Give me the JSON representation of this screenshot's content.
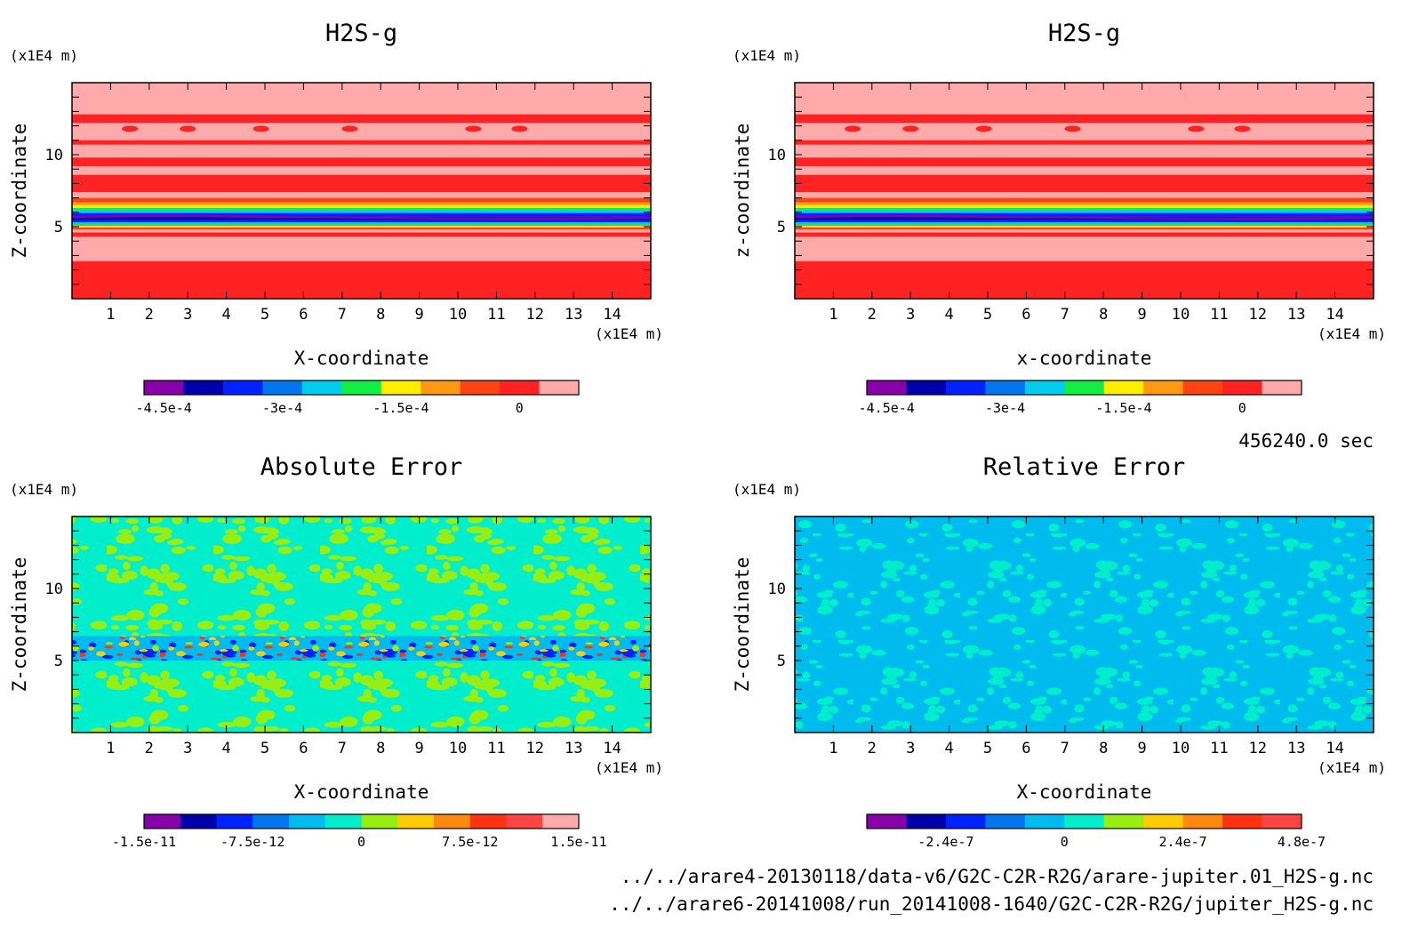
{
  "time_label": "456240.0 sec",
  "file_paths": [
    "../../arare4-20130118/data-v6/G2C-C2R-R2G/arare-jupiter.01_H2S-g.nc",
    "../../arare6-20141008/run_20141008-1640/G2C-C2R-R2G/jupiter_H2S-g.nc"
  ],
  "chart_data": [
    {
      "type": "heatmap",
      "title": "H2S-g",
      "xlabel": "X-coordinate",
      "ylabel": "Z-coordinate",
      "x_unit": "(x1E4 m)",
      "y_unit": "(x1E4 m)",
      "xlim": [
        0,
        15
      ],
      "ylim": [
        0,
        15
      ],
      "x_ticks": [
        "1",
        "2",
        "3",
        "4",
        "5",
        "6",
        "7",
        "8",
        "9",
        "10",
        "11",
        "12",
        "13",
        "14"
      ],
      "y_ticks": [
        "5",
        "10"
      ],
      "pattern": "layered",
      "colorbar": {
        "colors": [
          "#8800aa",
          "#0000aa",
          "#0022ff",
          "#0077ee",
          "#00ccee",
          "#11ee44",
          "#ffee00",
          "#ff9911",
          "#ff4411",
          "#ff2222",
          "#ffaaaa"
        ],
        "tick_labels": [
          "-4.5e-4",
          "-3e-4",
          "-1.5e-4",
          "0"
        ]
      }
    },
    {
      "type": "heatmap",
      "title": "H2S-g",
      "xlabel": "x-coordinate",
      "ylabel": "z-coordinate",
      "x_unit": "(x1E4 m)",
      "y_unit": "(x1E4 m)",
      "xlim": [
        0,
        15
      ],
      "ylim": [
        0,
        15
      ],
      "x_ticks": [
        "1",
        "2",
        "3",
        "4",
        "5",
        "6",
        "7",
        "8",
        "9",
        "10",
        "11",
        "12",
        "13",
        "14"
      ],
      "y_ticks": [
        "5",
        "10"
      ],
      "pattern": "layered",
      "colorbar": {
        "colors": [
          "#8800aa",
          "#0000aa",
          "#0022ff",
          "#0077ee",
          "#00ccee",
          "#11ee44",
          "#ffee00",
          "#ff9911",
          "#ff4411",
          "#ff2222",
          "#ffaaaa"
        ],
        "tick_labels": [
          "-4.5e-4",
          "-3e-4",
          "-1.5e-4",
          "0"
        ]
      }
    },
    {
      "type": "heatmap",
      "title": "Absolute Error",
      "xlabel": "X-coordinate",
      "ylabel": "Z-coordinate",
      "x_unit": "(x1E4 m)",
      "y_unit": "(x1E4 m)",
      "xlim": [
        0,
        15
      ],
      "ylim": [
        0,
        15
      ],
      "x_ticks": [
        "1",
        "2",
        "3",
        "4",
        "5",
        "6",
        "7",
        "8",
        "9",
        "10",
        "11",
        "12",
        "13",
        "14"
      ],
      "y_ticks": [
        "5",
        "10"
      ],
      "pattern": "abs_noise",
      "colorbar": {
        "colors": [
          "#8800aa",
          "#0000aa",
          "#0022ff",
          "#0077ee",
          "#00bbee",
          "#00eecc",
          "#99ee11",
          "#ffcc00",
          "#ff8811",
          "#ff3311",
          "#ff4444",
          "#ffaaaa"
        ],
        "tick_labels": [
          "-1.5e-11",
          "-7.5e-12",
          "0",
          "7.5e-12",
          "1.5e-11"
        ]
      }
    },
    {
      "type": "heatmap",
      "title": "Relative Error",
      "xlabel": "X-coordinate",
      "ylabel": "Z-coordinate",
      "x_unit": "(x1E4 m)",
      "y_unit": "(x1E4 m)",
      "xlim": [
        0,
        15
      ],
      "ylim": [
        0,
        15
      ],
      "x_ticks": [
        "1",
        "2",
        "3",
        "4",
        "5",
        "6",
        "7",
        "8",
        "9",
        "10",
        "11",
        "12",
        "13",
        "14"
      ],
      "y_ticks": [
        "5",
        "10"
      ],
      "pattern": "rel_noise",
      "colorbar": {
        "colors": [
          "#8800aa",
          "#0000aa",
          "#0022ff",
          "#0077ee",
          "#00bbee",
          "#00eecc",
          "#99ee11",
          "#ffcc00",
          "#ff8811",
          "#ff3311",
          "#ff4444"
        ],
        "tick_labels": [
          "-2.4e-7",
          "0",
          "2.4e-7",
          "4.8e-7"
        ]
      }
    }
  ]
}
